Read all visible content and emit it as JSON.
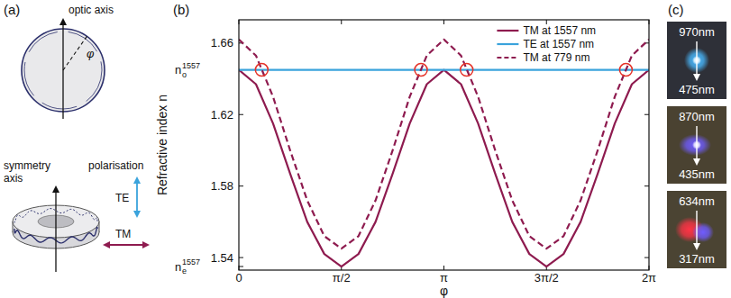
{
  "chart_data": {
    "type": "line",
    "panel_label": "(b)",
    "xlabel": "φ",
    "ylabel": "Refractive index n",
    "x": [
      0,
      0.2618,
      0.5236,
      0.7854,
      1.0472,
      1.309,
      1.5708,
      1.8326,
      2.0944,
      2.3562,
      2.618,
      2.8798,
      3.1416,
      3.4034,
      3.6652,
      3.927,
      4.1888,
      4.4506,
      4.7124,
      4.9742,
      5.236,
      5.4978,
      5.7596,
      6.0214,
      6.2832
    ],
    "xlim": [
      0,
      6.2832
    ],
    "xticks": [
      0,
      {
        "value": 1.5708,
        "label": "π/2"
      },
      {
        "value": 3.1416,
        "label": "π"
      },
      {
        "value": 4.7124,
        "label": "3π/2"
      },
      {
        "value": 6.2832,
        "label": "2π"
      }
    ],
    "ylim": [
      1.533,
      1.673
    ],
    "yticks": [
      1.54,
      1.58,
      1.62,
      1.66
    ],
    "y_markers": [
      {
        "value": 1.645,
        "base": "n",
        "sub": "o",
        "sup": "1557"
      },
      {
        "value": 1.535,
        "base": "n",
        "sub": "e",
        "sup": "1557"
      }
    ],
    "series": [
      {
        "name": "TM at 1557 nm",
        "color": "#8e1b4f",
        "line_style": "solid",
        "values": [
          1.645,
          1.637,
          1.615,
          1.587,
          1.56,
          1.542,
          1.535,
          1.542,
          1.56,
          1.587,
          1.615,
          1.637,
          1.645,
          1.637,
          1.615,
          1.587,
          1.56,
          1.542,
          1.535,
          1.542,
          1.56,
          1.587,
          1.615,
          1.637,
          1.645
        ]
      },
      {
        "name": "TE at 1557 nm",
        "color": "#3aa3dc",
        "line_style": "solid",
        "values": [
          1.645,
          1.645,
          1.645,
          1.645,
          1.645,
          1.645,
          1.645,
          1.645,
          1.645,
          1.645,
          1.645,
          1.645,
          1.645,
          1.645,
          1.645,
          1.645,
          1.645,
          1.645,
          1.645,
          1.645,
          1.645,
          1.645,
          1.645,
          1.645,
          1.645
        ]
      },
      {
        "name": "TM at 779 nm",
        "color": "#8e1b4f",
        "line_style": "dashed",
        "values": [
          1.662,
          1.653,
          1.63,
          1.6,
          1.572,
          1.552,
          1.545,
          1.552,
          1.572,
          1.6,
          1.63,
          1.653,
          1.662,
          1.653,
          1.63,
          1.6,
          1.572,
          1.552,
          1.545,
          1.552,
          1.572,
          1.6,
          1.63,
          1.653,
          1.662
        ]
      }
    ],
    "crossings": {
      "x": [
        0.35,
        2.79,
        3.49,
        5.93
      ],
      "y": [
        1.645,
        1.645,
        1.645,
        1.645
      ],
      "color": "#e53228",
      "marker": "circle"
    },
    "legend": "top",
    "grid": false
  },
  "panels": {
    "a": {
      "label": "(a)",
      "optic_axis": "optic axis",
      "angle": "φ",
      "symmetry_axis": "symmetry axis",
      "polarisation": "polarisation",
      "te": "TE",
      "tm": "TM"
    },
    "c": {
      "label": "(c)",
      "photos": [
        {
          "pump": "970nm",
          "signal": "475nm"
        },
        {
          "pump": "870nm",
          "signal": "435nm"
        },
        {
          "pump": "634nm",
          "signal": "317nm"
        }
      ]
    }
  }
}
